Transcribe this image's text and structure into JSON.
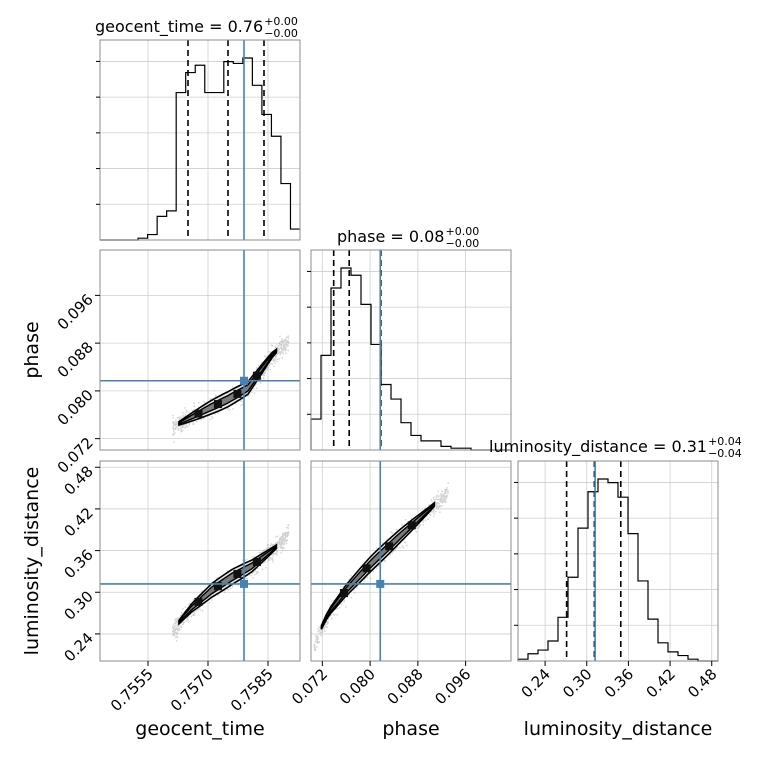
{
  "chart_data": {
    "type": "corner",
    "parameters": [
      {
        "name": "geocent_time",
        "range": [
          0.7543,
          0.7593
        ],
        "ticks": [
          "0.7555",
          "0.7570",
          "0.7585"
        ],
        "tick_values": [
          0.7555,
          0.757,
          0.7585
        ],
        "truth": 0.7579
      },
      {
        "name": "phase",
        "range": [
          0.0701,
          0.1036
        ],
        "ticks": [
          "0.072",
          "0.080",
          "0.088",
          "0.096"
        ],
        "tick_values": [
          0.072,
          0.08,
          0.088,
          0.096
        ],
        "truth": 0.0817
      },
      {
        "name": "luminosity_distance",
        "range": [
          0.201,
          0.489
        ],
        "ticks": [
          "0.24",
          "0.30",
          "0.36",
          "0.42",
          "0.48"
        ],
        "tick_values": [
          0.24,
          0.3,
          0.36,
          0.42,
          0.48
        ],
        "truth": 0.312
      }
    ],
    "titles": [
      {
        "param": "geocent_time",
        "text": "geocent_time = 0.76",
        "plus": "+0.00",
        "minus": "−0.00"
      },
      {
        "param": "phase",
        "text": "phase = 0.08",
        "plus": "+0.00",
        "minus": "−0.00"
      },
      {
        "param": "luminosity_distance",
        "text": "luminosity_distance = 0.31",
        "plus": "+0.04",
        "minus": "−0.04"
      }
    ],
    "quantiles": {
      "geocent_time": [
        0.7565,
        0.7575,
        0.7584
      ],
      "phase": [
        0.0739,
        0.0765,
        0.0818
      ],
      "luminosity_distance": [
        0.271,
        0.311,
        0.349
      ]
    },
    "histograms": {
      "geocent_time": [
        0,
        0,
        0,
        0,
        0.01,
        0.03,
        0.13,
        0.16,
        0.81,
        0.92,
        0.96,
        0.81,
        0.81,
        0.98,
        0.97,
        1.0,
        0.85,
        0.69,
        0.57,
        0.31,
        0.06
      ],
      "phase": [
        0.17,
        0.52,
        0.89,
        1.0,
        0.96,
        0.8,
        0.58,
        0.36,
        0.28,
        0.15,
        0.08,
        0.05,
        0.05,
        0.02,
        0.01,
        0.01,
        0,
        0,
        0,
        0
      ],
      "luminosity_distance": [
        0.01,
        0.04,
        0.06,
        0.11,
        0.24,
        0.46,
        0.73,
        0.93,
        1.0,
        0.98,
        0.9,
        0.7,
        0.44,
        0.23,
        0.1,
        0.05,
        0.03,
        0.01,
        0,
        0
      ]
    },
    "correlations": [
      {
        "x": "geocent_time",
        "y": "phase",
        "points": [
          [
            0.7561,
            0.074
          ],
          [
            0.7565,
            0.0753
          ],
          [
            0.757,
            0.077
          ],
          [
            0.7575,
            0.0786
          ],
          [
            0.758,
            0.0805
          ],
          [
            0.7586,
            0.086
          ],
          [
            0.759,
            0.0885
          ]
        ]
      },
      {
        "x": "geocent_time",
        "y": "luminosity_distance",
        "points": [
          [
            0.7561,
            0.246
          ],
          [
            0.7566,
            0.278
          ],
          [
            0.7571,
            0.303
          ],
          [
            0.7576,
            0.322
          ],
          [
            0.7581,
            0.338
          ],
          [
            0.7587,
            0.365
          ],
          [
            0.759,
            0.385
          ]
        ]
      },
      {
        "x": "phase",
        "y": "luminosity_distance",
        "points": [
          [
            0.0705,
            0.225
          ],
          [
            0.073,
            0.27
          ],
          [
            0.076,
            0.303
          ],
          [
            0.08,
            0.34
          ],
          [
            0.085,
            0.381
          ],
          [
            0.09,
            0.42
          ],
          [
            0.093,
            0.445
          ]
        ]
      }
    ],
    "truth_color": "#4682b4",
    "grid": true
  }
}
